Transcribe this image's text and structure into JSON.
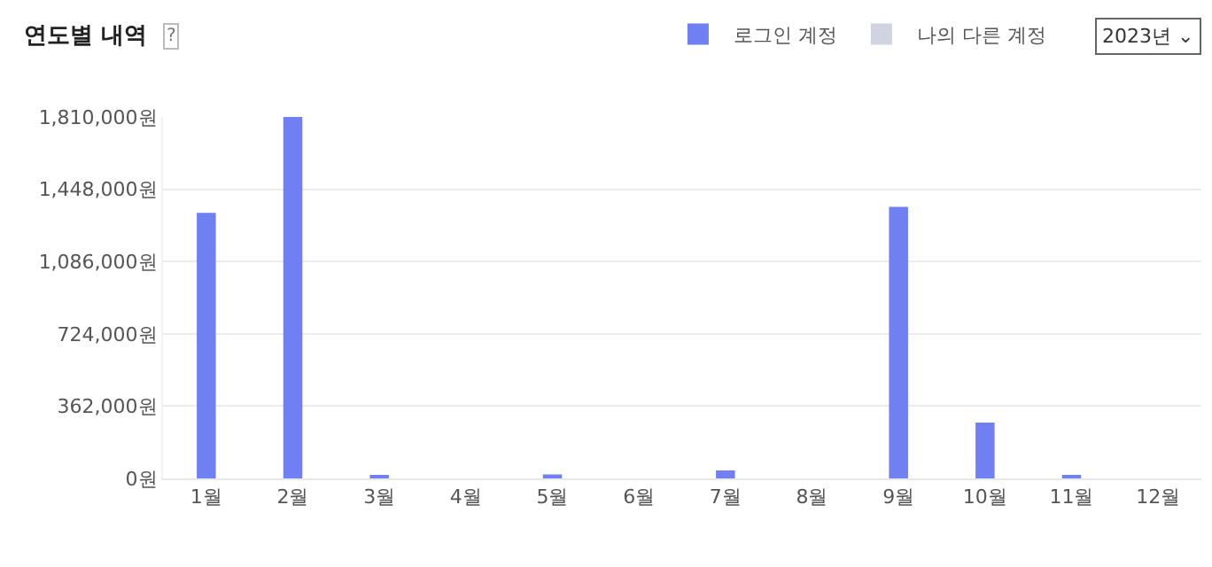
{
  "chart_data": {
    "type": "bar",
    "title": "연도별 내역",
    "categories": [
      "1월",
      "2월",
      "3월",
      "4월",
      "5월",
      "6월",
      "7월",
      "8월",
      "9월",
      "10월",
      "11월",
      "12월"
    ],
    "series": [
      {
        "name": "로그인 계정",
        "color": "#7080f2",
        "values": [
          1330000,
          1810000,
          10000,
          0,
          20000,
          0,
          40000,
          0,
          1360000,
          280000,
          10000,
          0
        ]
      },
      {
        "name": "나의 다른 계정",
        "color": "#d0d3e0",
        "values": [
          0,
          0,
          0,
          0,
          0,
          0,
          0,
          0,
          0,
          0,
          0,
          0
        ]
      }
    ],
    "ylim": [
      0,
      1810000
    ],
    "yticks": [
      {
        "value": 0,
        "label": "0원"
      },
      {
        "value": 362000,
        "label": "362,000원"
      },
      {
        "value": 724000,
        "label": "724,000원"
      },
      {
        "value": 1086000,
        "label": "1,086,000원"
      },
      {
        "value": 1448000,
        "label": "1,448,000원"
      },
      {
        "value": 1810000,
        "label": "1,810,000원"
      }
    ],
    "grid": "y",
    "legend": "top right",
    "annotations": [
      "?",
      "2023년 ⌄"
    ]
  }
}
